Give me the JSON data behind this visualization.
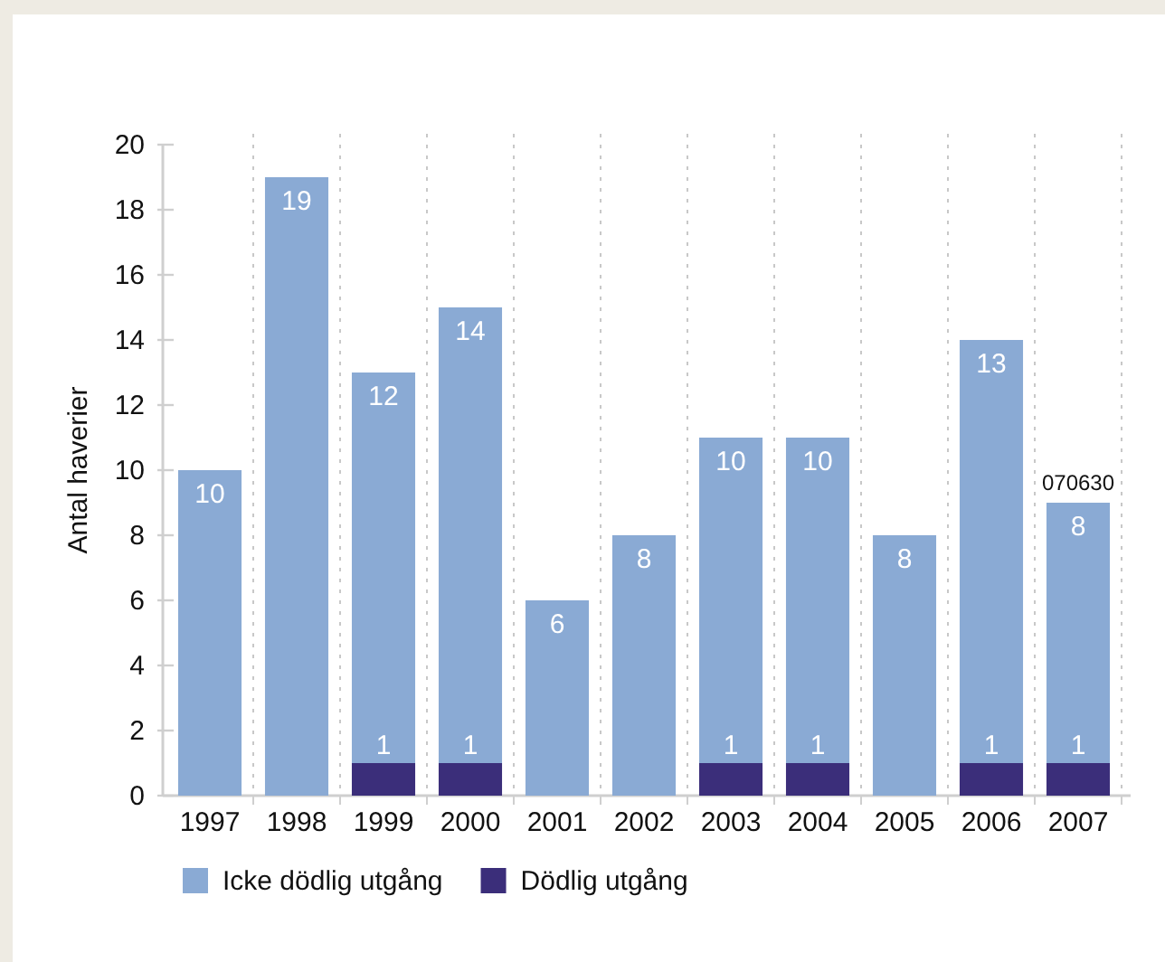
{
  "chart_data": {
    "type": "bar",
    "stacked": true,
    "ylabel": "Antal haverier",
    "categories": [
      "1997",
      "1998",
      "1999",
      "2000",
      "2001",
      "2002",
      "2003",
      "2004",
      "2005",
      "2006",
      "2007"
    ],
    "series": [
      {
        "name": "Dödlig utgång",
        "color": "#3b2e7a",
        "values": [
          0,
          0,
          1,
          1,
          0,
          0,
          1,
          1,
          0,
          1,
          1
        ],
        "value_labels": [
          null,
          null,
          "1",
          "1",
          null,
          null,
          "1",
          "1",
          null,
          "1",
          "1"
        ]
      },
      {
        "name": "Icke dödlig utgång",
        "color": "#8aaad4",
        "values": [
          10,
          19,
          12,
          14,
          6,
          8,
          10,
          10,
          8,
          13,
          8
        ],
        "value_labels": [
          "10",
          "19",
          "12",
          "14",
          "6",
          "8",
          "10",
          "10",
          "8",
          "13",
          "8"
        ]
      }
    ],
    "ylim": [
      0,
      20
    ],
    "yticks": [
      0,
      2,
      4,
      6,
      8,
      10,
      12,
      14,
      16,
      18,
      20
    ],
    "grid": "x",
    "legend": "bottom left",
    "annotations": [
      {
        "text": "070630",
        "x": "2007",
        "y": 9
      }
    ]
  }
}
